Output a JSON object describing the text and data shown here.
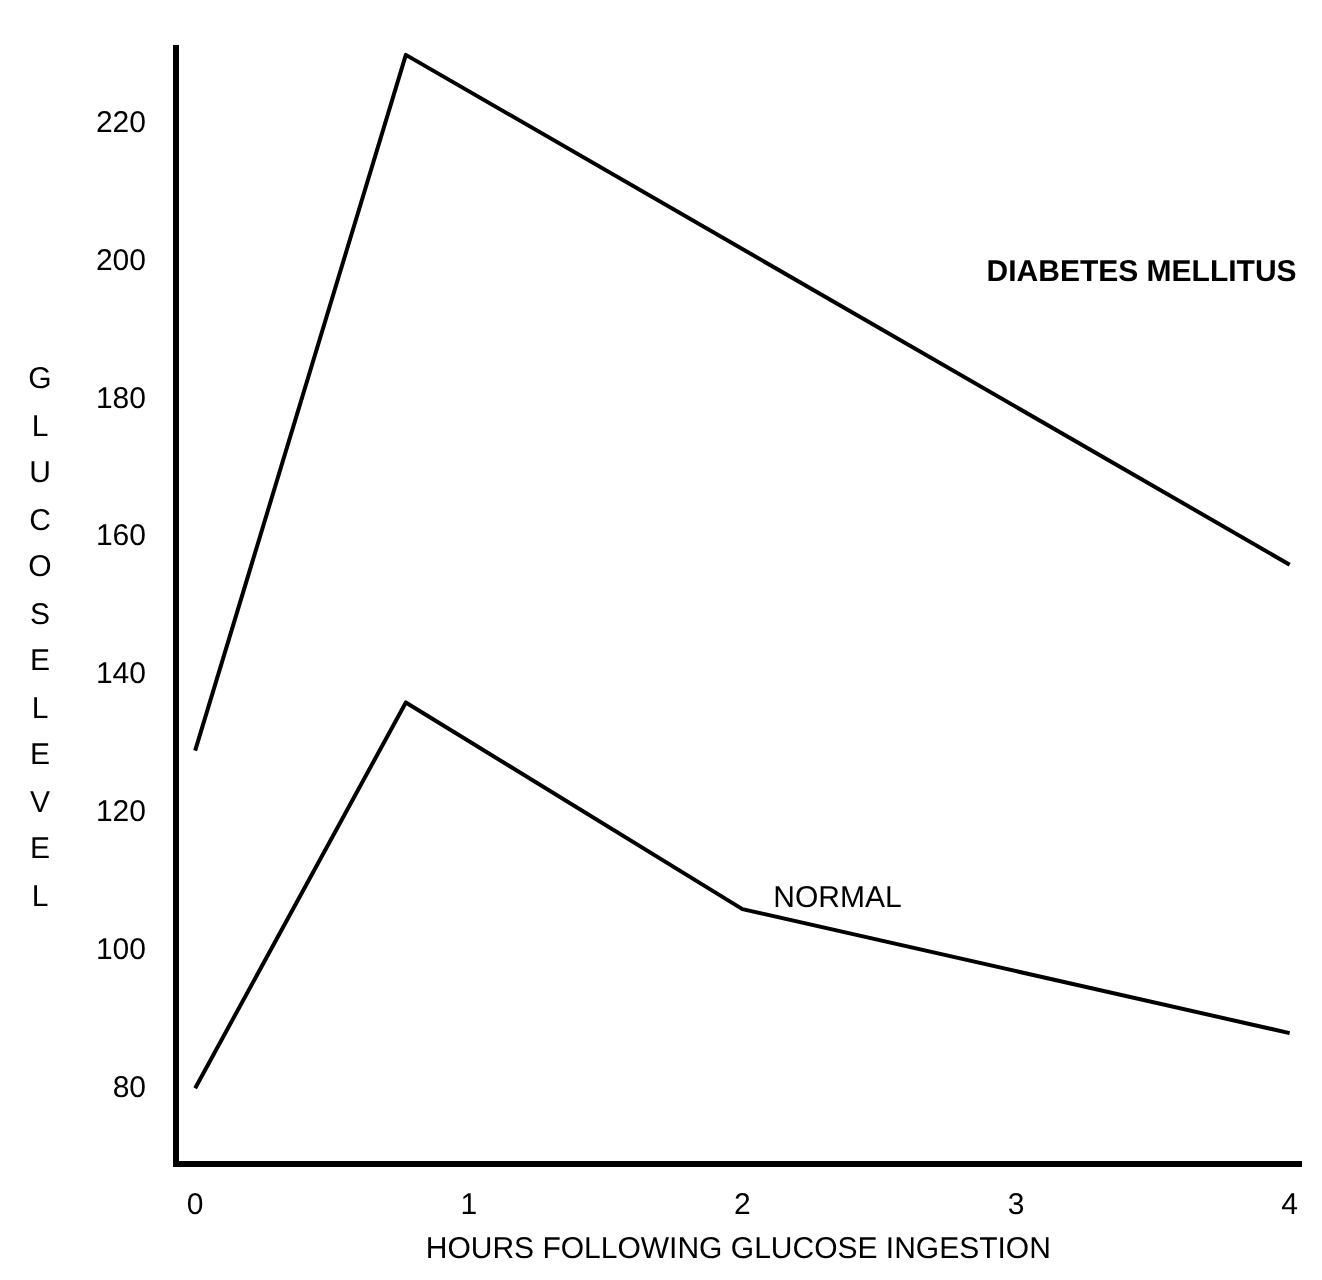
{
  "chart_data": {
    "type": "line",
    "xlabel": "HOURS FOLLOWING GLUCOSE INGESTION",
    "ylabel": "GLUCOSE LEVEL",
    "xlim": [
      -0.07,
      4.04
    ],
    "xticks": [
      0,
      1,
      2,
      3,
      4
    ],
    "ylim": [
      69,
      231
    ],
    "yticks": [
      80,
      100,
      120,
      140,
      160,
      180,
      200,
      220
    ],
    "grid": false,
    "line_style": "solid",
    "series": [
      {
        "name": "DIABETES MELLITUS",
        "color": "#000000",
        "x": [
          0,
          0.77,
          4
        ],
        "values": [
          129,
          230,
          156
        ]
      },
      {
        "name": "NORMAL",
        "color": "#000000",
        "x": [
          0,
          0.77,
          2,
          4
        ],
        "values": [
          80,
          136,
          106,
          88
        ]
      }
    ]
  }
}
